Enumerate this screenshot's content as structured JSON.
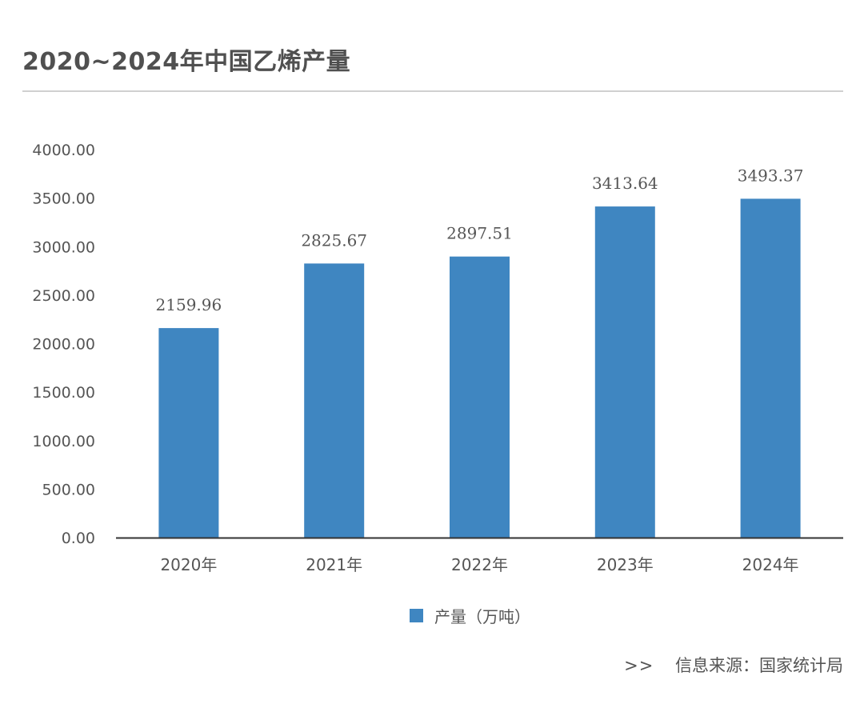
{
  "header": {
    "title": "2020~2024年中国乙烯产量"
  },
  "source": {
    "arrow": ">>",
    "text": "信息来源：国家统计局"
  },
  "colors": {
    "bar": "#3f86c1",
    "axis": "#333333",
    "text": "#555555"
  },
  "chart_data": {
    "type": "bar",
    "categories": [
      "2020年",
      "2021年",
      "2022年",
      "2023年",
      "2024年"
    ],
    "series": [
      {
        "name": "产量（万吨）",
        "values": [
          2159.96,
          2825.67,
          2897.51,
          3413.64,
          3493.37
        ]
      }
    ],
    "data_labels": [
      "2159.96",
      "2825.67",
      "2897.51",
      "3413.64",
      "3493.37"
    ],
    "yticks": [
      "0.00",
      "500.00",
      "1000.00",
      "1500.00",
      "2000.00",
      "2500.00",
      "3000.00",
      "3500.00",
      "4000.00"
    ],
    "ylim": [
      0,
      4000
    ],
    "grid": false,
    "legend_position": "bottom-center"
  }
}
